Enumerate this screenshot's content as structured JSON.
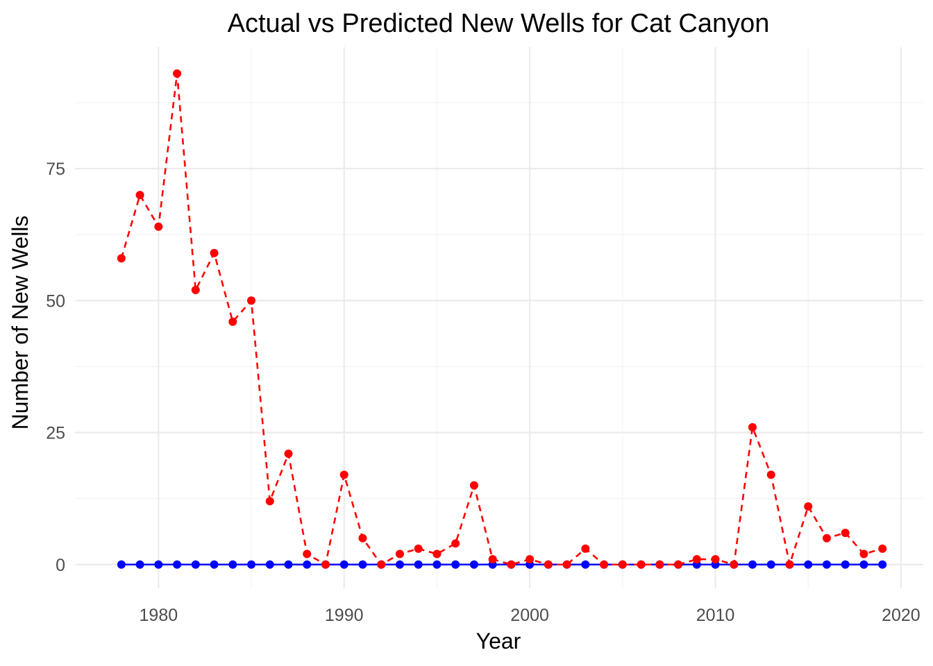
{
  "chart_data": {
    "type": "line",
    "title": "Actual vs Predicted New Wells for Cat Canyon",
    "xlabel": "Year",
    "ylabel": "Number of New Wells",
    "xlim": [
      1975.5,
      2021.2
    ],
    "ylim": [
      -4.5,
      98
    ],
    "x_ticks": [
      1980,
      1990,
      2000,
      2010,
      2020
    ],
    "y_ticks": [
      0,
      25,
      50,
      75
    ],
    "grid": true,
    "legend": "none",
    "x": [
      1978,
      1979,
      1980,
      1981,
      1982,
      1983,
      1984,
      1985,
      1986,
      1987,
      1988,
      1989,
      1990,
      1991,
      1992,
      1993,
      1994,
      1995,
      1996,
      1997,
      1998,
      1999,
      2000,
      2001,
      2002,
      2003,
      2004,
      2005,
      2006,
      2007,
      2008,
      2009,
      2010,
      2011,
      2012,
      2013,
      2014,
      2015,
      2016,
      2017,
      2018,
      2019
    ],
    "series": [
      {
        "color": "#0000ff",
        "line_style": "solid",
        "values": [
          0,
          0,
          0,
          0,
          0,
          0,
          0,
          0,
          0,
          0,
          0,
          0,
          0,
          0,
          0,
          0,
          0,
          0,
          0,
          0,
          0,
          0,
          0,
          0,
          0,
          0,
          0,
          0,
          0,
          0,
          0,
          0,
          0,
          0,
          0,
          0,
          0,
          0,
          0,
          0,
          0,
          0
        ]
      },
      {
        "color": "#ff0000",
        "line_style": "dashed",
        "values": [
          58,
          70,
          64,
          93,
          52,
          59,
          46,
          50,
          12,
          21,
          2,
          0,
          17,
          5,
          0,
          2,
          3,
          2,
          4,
          15,
          1,
          0,
          1,
          0,
          0,
          3,
          0,
          0,
          0,
          0,
          0,
          1,
          1,
          0,
          26,
          17,
          0,
          11,
          5,
          6,
          2,
          3
        ]
      }
    ]
  }
}
